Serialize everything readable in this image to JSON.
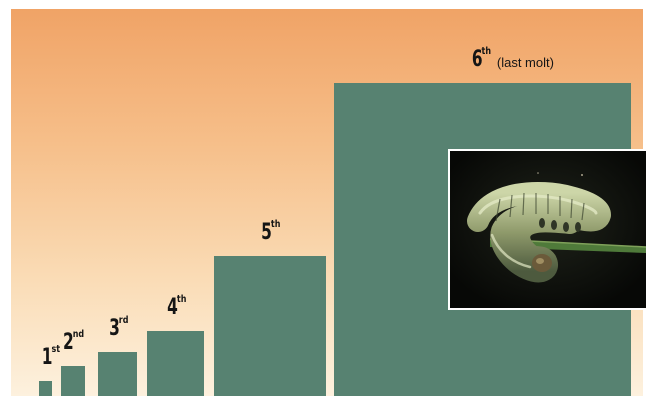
{
  "chart_data": {
    "type": "bar",
    "categories": [
      "1st",
      "2nd",
      "3rd",
      "4th",
      "5th",
      "6th"
    ],
    "labels": [
      {
        "num": "1",
        "sup": "st",
        "note": ""
      },
      {
        "num": "2",
        "sup": "nd",
        "note": ""
      },
      {
        "num": "3",
        "sup": "rd",
        "note": ""
      },
      {
        "num": "4",
        "sup": "th",
        "note": ""
      },
      {
        "num": "5",
        "sup": "th",
        "note": ""
      },
      {
        "num": "6",
        "sup": "th",
        "note": "(last molt)"
      }
    ],
    "values": [
      15,
      30,
      44,
      65,
      140,
      313
    ],
    "widths": [
      13,
      24,
      39,
      57,
      112,
      297
    ],
    "ylim": [
      0,
      387
    ],
    "title": "",
    "xlabel": "",
    "ylabel": "",
    "grid": false,
    "axes_visible": false
  },
  "colors": {
    "bar": "#578271",
    "background_top": "#f0a366",
    "background_bottom": "#fdf1de",
    "label": "#151515"
  },
  "photo": {
    "icon": "caterpillar-photo"
  }
}
